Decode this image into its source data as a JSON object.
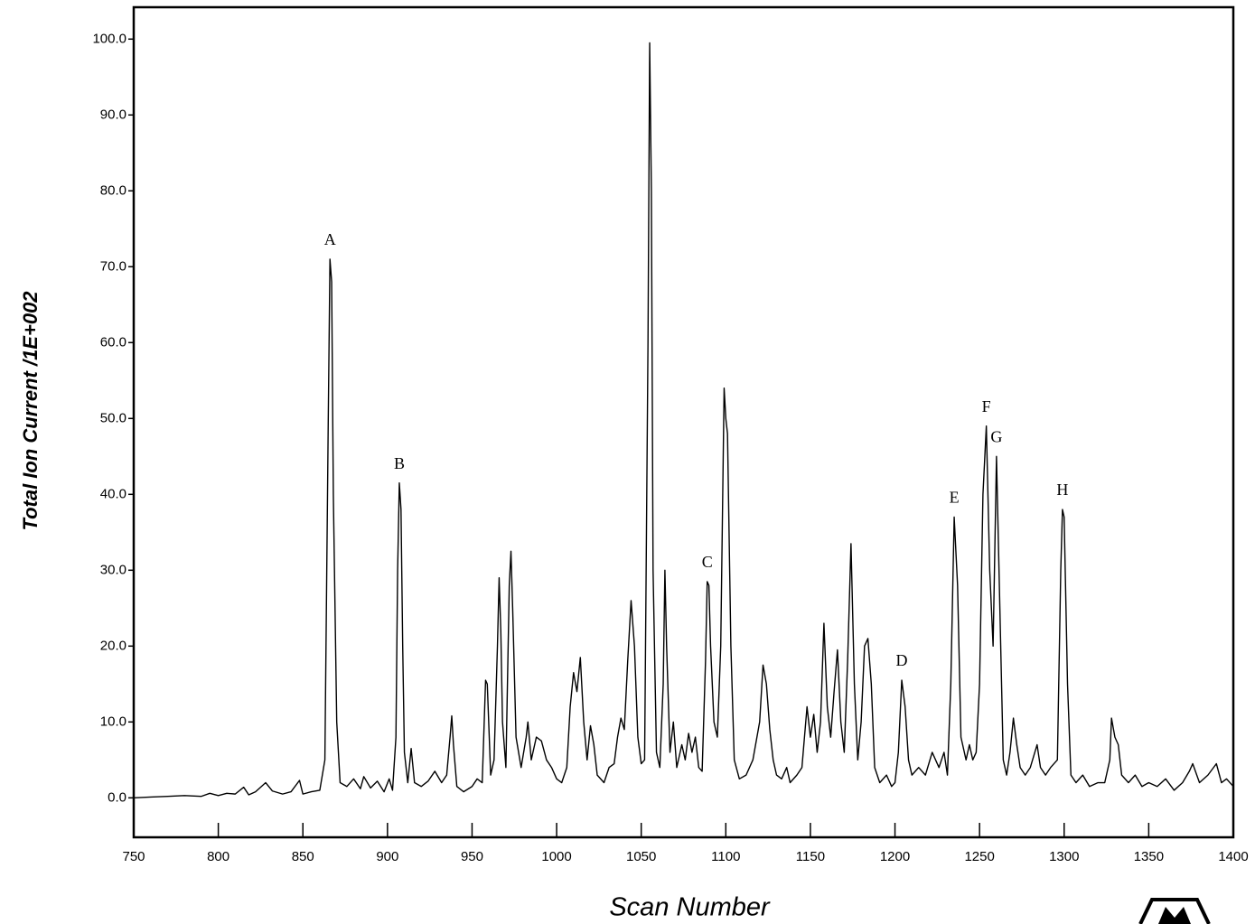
{
  "chart_data": {
    "type": "line",
    "y_label": "Total Ion Current /1E+002",
    "x_label": "Scan Number",
    "color": "#000000",
    "grid": false,
    "xlim": [
      750,
      1400
    ],
    "ylim": [
      -5.2,
      104.2
    ],
    "xticks": [
      750,
      800,
      850,
      900,
      950,
      1000,
      1050,
      1100,
      1150,
      1200,
      1250,
      1300,
      1350,
      1400
    ],
    "yticks": [
      {
        "value": 0,
        "label": "0.0"
      },
      {
        "value": 10,
        "label": "10.0"
      },
      {
        "value": 20,
        "label": "20.0"
      },
      {
        "value": 30,
        "label": "30.0"
      },
      {
        "value": 40,
        "label": "40.0"
      },
      {
        "value": 50,
        "label": "50.0"
      },
      {
        "value": 60,
        "label": "60.0"
      },
      {
        "value": 70,
        "label": "70.0"
      },
      {
        "value": 80,
        "label": "80.0"
      },
      {
        "value": 90,
        "label": "90.0"
      },
      {
        "value": 100,
        "label": "100.0"
      }
    ],
    "x": [
      750,
      760,
      770,
      780,
      790,
      795,
      800,
      805,
      810,
      815,
      818,
      822,
      828,
      832,
      838,
      843,
      848,
      850,
      855,
      860,
      863,
      865,
      866,
      867,
      868,
      870,
      872,
      876,
      880,
      884,
      886,
      890,
      894,
      898,
      901,
      903,
      905,
      906,
      907,
      908,
      909,
      910,
      912,
      914,
      916,
      920,
      924,
      928,
      932,
      935,
      937,
      938,
      939,
      941,
      945,
      950,
      953,
      956,
      958,
      959,
      961,
      963,
      965,
      966,
      967,
      968,
      970,
      972,
      973,
      974,
      976,
      979,
      982,
      983,
      985,
      988,
      991,
      994,
      997,
      1000,
      1003,
      1006,
      1008,
      1010,
      1012,
      1014,
      1016,
      1018,
      1020,
      1022,
      1024,
      1028,
      1031,
      1034,
      1036,
      1038,
      1040,
      1042,
      1044,
      1046,
      1048,
      1050,
      1052,
      1054,
      1055,
      1056,
      1057,
      1059,
      1061,
      1063,
      1064,
      1065,
      1067,
      1069,
      1071,
      1074,
      1076,
      1078,
      1080,
      1082,
      1084,
      1086,
      1088,
      1089,
      1090,
      1091,
      1093,
      1095,
      1097,
      1099,
      1100,
      1101,
      1103,
      1105,
      1108,
      1112,
      1116,
      1120,
      1122,
      1124,
      1126,
      1128,
      1130,
      1133,
      1136,
      1138,
      1142,
      1145,
      1148,
      1150,
      1152,
      1154,
      1156,
      1158,
      1160,
      1162,
      1164,
      1166,
      1168,
      1170,
      1172,
      1174,
      1176,
      1178,
      1180,
      1182,
      1184,
      1186,
      1188,
      1191,
      1195,
      1198,
      1200,
      1202,
      1204,
      1206,
      1208,
      1210,
      1214,
      1218,
      1222,
      1226,
      1229,
      1231,
      1233,
      1235,
      1237,
      1239,
      1242,
      1244,
      1246,
      1248,
      1250,
      1252,
      1254,
      1256,
      1258,
      1260,
      1262,
      1264,
      1266,
      1268,
      1270,
      1272,
      1274,
      1277,
      1280,
      1284,
      1286,
      1289,
      1292,
      1296,
      1298,
      1299,
      1300,
      1302,
      1304,
      1307,
      1311,
      1315,
      1320,
      1324,
      1327,
      1328,
      1330,
      1332,
      1334,
      1338,
      1342,
      1346,
      1350,
      1355,
      1360,
      1365,
      1370,
      1374,
      1376,
      1380,
      1385,
      1390,
      1393,
      1396,
      1400
    ],
    "values": [
      0,
      0.1,
      0.2,
      0.3,
      0.2,
      0.6,
      0.3,
      0.6,
      0.5,
      1.4,
      0.4,
      0.8,
      2.0,
      0.9,
      0.5,
      0.8,
      2.3,
      0.5,
      0.8,
      1.0,
      5,
      50,
      71,
      68,
      40,
      10,
      2,
      1.5,
      2.5,
      1.2,
      2.8,
      1.3,
      2.2,
      0.8,
      2.5,
      1.0,
      8,
      30,
      41.5,
      38,
      20,
      6,
      2,
      6.5,
      2,
      1.5,
      2.2,
      3.5,
      2,
      3,
      8,
      10.8,
      7,
      1.5,
      0.8,
      1.5,
      2.5,
      2,
      15.5,
      15,
      3,
      5,
      20,
      29,
      22,
      10,
      4,
      28,
      32.5,
      25,
      8,
      4,
      8,
      10,
      5,
      8,
      7.5,
      5,
      4,
      2.5,
      2,
      4,
      12,
      16.5,
      14,
      18.5,
      10,
      5,
      9.5,
      7,
      3,
      2,
      4,
      4.5,
      8,
      10.5,
      9,
      18,
      26,
      20,
      8,
      4.5,
      5,
      60,
      99.5,
      80,
      30,
      6,
      4,
      15,
      30,
      20,
      6,
      10,
      4,
      7,
      5,
      8.5,
      6,
      8,
      4,
      3.5,
      18,
      28.5,
      28,
      20,
      10,
      8,
      20,
      54,
      50,
      48,
      20,
      5,
      2.5,
      3,
      5,
      10,
      17.5,
      15,
      9,
      5,
      3,
      2.5,
      4,
      2,
      3,
      4,
      12,
      8,
      11,
      6,
      10,
      23,
      12,
      8,
      14,
      19.5,
      10,
      6,
      18,
      33.5,
      15,
      5,
      10,
      20,
      21,
      15,
      4,
      2,
      3,
      1.5,
      2,
      6,
      15.5,
      12,
      5,
      3,
      4,
      3,
      6,
      4,
      6,
      3,
      15,
      37,
      28,
      8,
      5,
      7,
      5,
      6,
      15,
      40,
      49,
      30,
      20,
      45,
      25,
      5,
      3,
      6,
      10.5,
      7,
      4,
      3,
      4,
      7,
      4,
      3,
      4,
      5,
      30,
      38,
      37,
      15,
      3,
      2,
      3,
      1.5,
      2,
      2,
      5,
      10.5,
      8,
      7,
      3,
      2,
      3,
      1.5,
      2,
      1.5,
      2.5,
      1,
      2,
      3.5,
      4.5,
      2,
      3,
      4.5,
      2,
      2.5,
      1.5
    ],
    "annotations": [
      {
        "text": "A",
        "x": 866,
        "y": 71
      },
      {
        "text": "B",
        "x": 907,
        "y": 41.5
      },
      {
        "text": "C",
        "x": 1089,
        "y": 28.5
      },
      {
        "text": "D",
        "x": 1204,
        "y": 15.5
      },
      {
        "text": "E",
        "x": 1235,
        "y": 37
      },
      {
        "text": "F",
        "x": 1254,
        "y": 49
      },
      {
        "text": "G",
        "x": 1260,
        "y": 45
      },
      {
        "text": "H",
        "x": 1299,
        "y": 38
      }
    ]
  }
}
